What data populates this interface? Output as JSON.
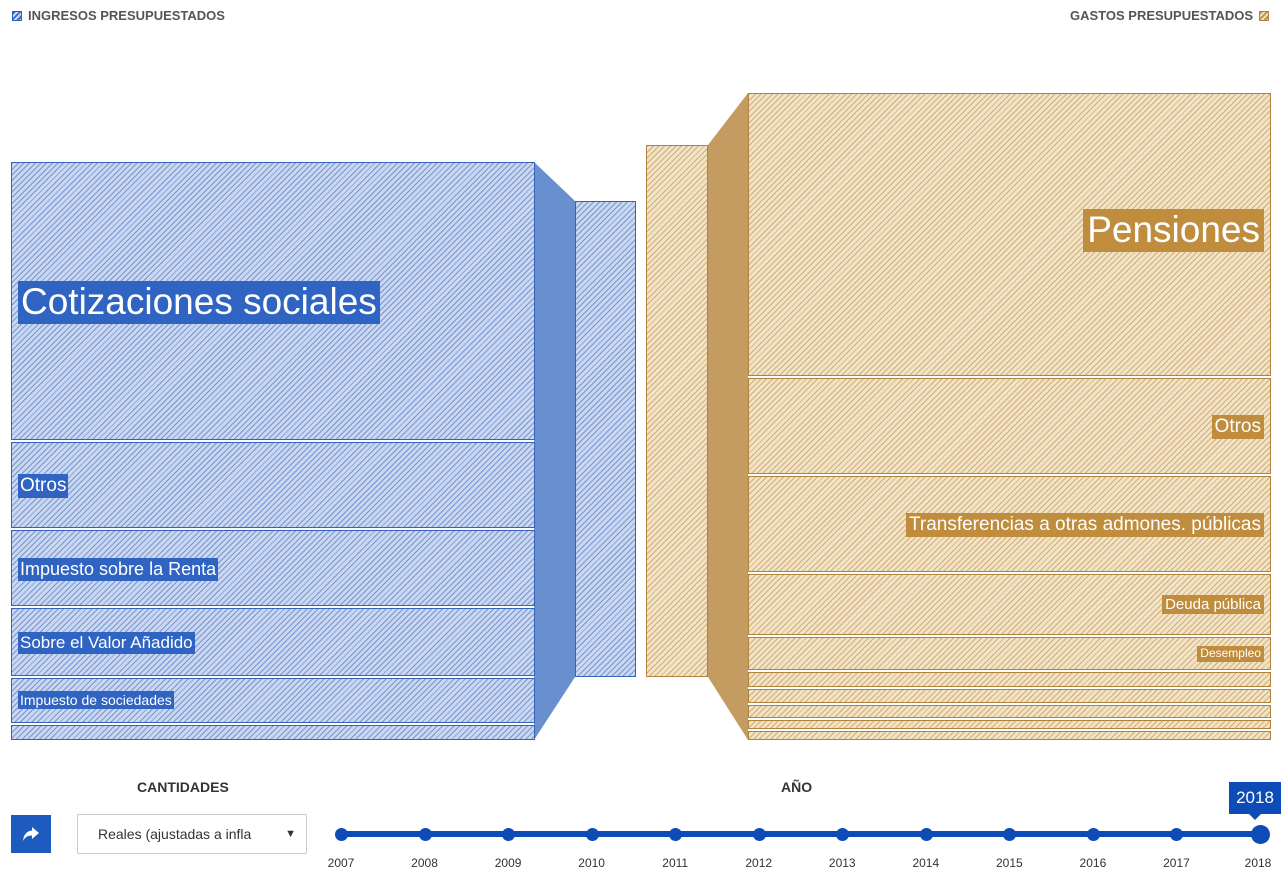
{
  "legend": {
    "income_label": "INGRESOS PRESUPUESTADOS",
    "expense_label": "GASTOS PRESUPUESTADOS"
  },
  "income": [
    {
      "label": "Cotizaciones sociales"
    },
    {
      "label": "Otros"
    },
    {
      "label": "Impuesto sobre la Renta"
    },
    {
      "label": "Sobre el Valor Añadido"
    },
    {
      "label": "Impuesto de sociedades"
    },
    {
      "label": ""
    }
  ],
  "expenses": [
    {
      "label": "Pensiones"
    },
    {
      "label": "Otros"
    },
    {
      "label": "Transferencias a otras admones. públicas"
    },
    {
      "label": "Deuda pública"
    },
    {
      "label": "Desempleo"
    }
  ],
  "controls": {
    "cantidades_title": "CANTIDADES",
    "cantidades_value": "Reales (ajustadas a infla",
    "ano_title": "AÑO",
    "selected_year": "2018",
    "years": [
      "2007",
      "2008",
      "2009",
      "2010",
      "2011",
      "2012",
      "2013",
      "2014",
      "2015",
      "2016",
      "2017",
      "2018"
    ]
  },
  "colors": {
    "income_accent": "#2f64c3",
    "income_fill": "#c9d7f1",
    "expense_accent": "#c08c3d",
    "expense_fill": "#f3e3c6",
    "timeline": "#0d4cb7"
  },
  "icons": {
    "share": "share-arrow-icon",
    "dropdown": "chevron-down-icon"
  }
}
